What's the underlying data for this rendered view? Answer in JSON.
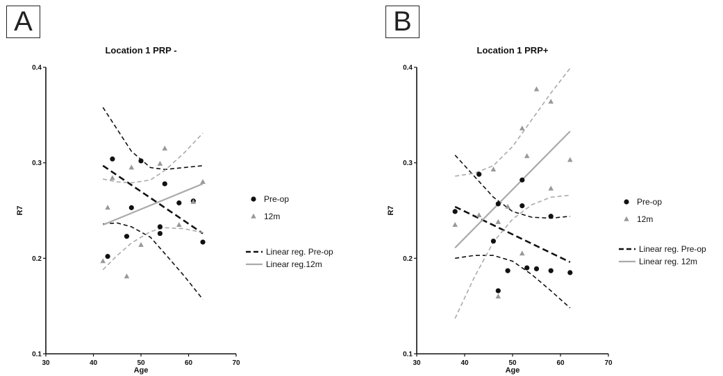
{
  "panels": [
    {
      "letter": "A"
    },
    {
      "letter": "B"
    }
  ],
  "chart_data": [
    {
      "type": "scatter",
      "title": "Location 1 PRP -",
      "xlabel": "Age",
      "ylabel": "R7",
      "xlim": [
        30,
        70
      ],
      "ylim": [
        0.1,
        0.4
      ],
      "xticks": [
        30,
        40,
        50,
        60,
        70
      ],
      "yticks": [
        0.1,
        0.2,
        0.3,
        0.4
      ],
      "legend_placement": "right",
      "series": [
        {
          "name": "Pre-op",
          "marker": "circle",
          "color": "#111111",
          "points": [
            [
              43,
              0.202
            ],
            [
              44,
              0.304
            ],
            [
              47,
              0.223
            ],
            [
              48,
              0.253
            ],
            [
              50,
              0.302
            ],
            [
              54,
              0.226
            ],
            [
              54,
              0.233
            ],
            [
              55,
              0.278
            ],
            [
              58,
              0.258
            ],
            [
              61,
              0.26
            ],
            [
              63,
              0.217
            ]
          ]
        },
        {
          "name": "12m",
          "marker": "triangle",
          "color": "#999999",
          "points": [
            [
              42,
              0.197
            ],
            [
              43,
              0.253
            ],
            [
              44,
              0.284
            ],
            [
              47,
              0.181
            ],
            [
              48,
              0.295
            ],
            [
              50,
              0.214
            ],
            [
              54,
              0.299
            ],
            [
              55,
              0.315
            ],
            [
              58,
              0.235
            ],
            [
              61,
              0.259
            ],
            [
              63,
              0.28
            ]
          ]
        }
      ],
      "regressions": [
        {
          "name": "Linear reg. Pre-op",
          "style": "dashed",
          "color": "#111111",
          "line": [
            [
              42,
              0.297
            ],
            [
              63,
              0.226
            ]
          ],
          "ci_upper": [
            [
              42,
              0.358
            ],
            [
              45,
              0.335
            ],
            [
              48,
              0.312
            ],
            [
              52,
              0.295
            ],
            [
              55,
              0.293
            ],
            [
              59,
              0.295
            ],
            [
              63,
              0.297
            ]
          ],
          "ci_lower": [
            [
              42,
              0.236
            ],
            [
              45,
              0.237
            ],
            [
              48,
              0.233
            ],
            [
              52,
              0.222
            ],
            [
              55,
              0.205
            ],
            [
              59,
              0.182
            ],
            [
              63,
              0.157
            ]
          ]
        },
        {
          "name": "Linear reg.12m",
          "style": "solid",
          "color": "#aaaaaa",
          "line": [
            [
              42,
              0.235
            ],
            [
              63,
              0.278
            ]
          ],
          "ci_upper": [
            [
              42,
              0.283
            ],
            [
              45,
              0.28
            ],
            [
              48,
              0.279
            ],
            [
              52,
              0.282
            ],
            [
              55,
              0.292
            ],
            [
              59,
              0.31
            ],
            [
              63,
              0.331
            ]
          ],
          "ci_lower": [
            [
              42,
              0.188
            ],
            [
              45,
              0.203
            ],
            [
              48,
              0.216
            ],
            [
              52,
              0.228
            ],
            [
              55,
              0.232
            ],
            [
              59,
              0.231
            ],
            [
              63,
              0.227
            ]
          ]
        }
      ]
    },
    {
      "type": "scatter",
      "title": "Location 1 PRP+",
      "xlabel": "Age",
      "ylabel": "R7",
      "xlim": [
        30,
        70
      ],
      "ylim": [
        0.1,
        0.4
      ],
      "xticks": [
        30,
        40,
        50,
        60,
        70
      ],
      "yticks": [
        0.1,
        0.2,
        0.3,
        0.4
      ],
      "legend_placement": "right",
      "series": [
        {
          "name": "Pre-op",
          "marker": "circle",
          "color": "#111111",
          "points": [
            [
              38,
              0.249
            ],
            [
              43,
              0.288
            ],
            [
              46,
              0.218
            ],
            [
              47,
              0.166
            ],
            [
              47,
              0.257
            ],
            [
              49,
              0.187
            ],
            [
              52,
              0.282
            ],
            [
              52,
              0.255
            ],
            [
              53,
              0.19
            ],
            [
              55,
              0.189
            ],
            [
              58,
              0.187
            ],
            [
              58,
              0.244
            ],
            [
              62,
              0.185
            ]
          ]
        },
        {
          "name": "12m",
          "marker": "triangle",
          "color": "#999999",
          "points": [
            [
              38,
              0.235
            ],
            [
              43,
              0.245
            ],
            [
              46,
              0.293
            ],
            [
              47,
              0.16
            ],
            [
              47,
              0.238
            ],
            [
              49,
              0.254
            ],
            [
              52,
              0.205
            ],
            [
              52,
              0.336
            ],
            [
              53,
              0.307
            ],
            [
              55,
              0.377
            ],
            [
              58,
              0.273
            ],
            [
              58,
              0.364
            ],
            [
              62,
              0.303
            ]
          ]
        }
      ],
      "regressions": [
        {
          "name": "Linear reg. Pre-op",
          "style": "dashed",
          "color": "#111111",
          "line": [
            [
              38,
              0.254
            ],
            [
              62,
              0.196
            ]
          ],
          "ci_upper": [
            [
              38,
              0.308
            ],
            [
              42,
              0.286
            ],
            [
              46,
              0.264
            ],
            [
              50,
              0.249
            ],
            [
              54,
              0.243
            ],
            [
              58,
              0.242
            ],
            [
              62,
              0.244
            ]
          ],
          "ci_lower": [
            [
              38,
              0.2
            ],
            [
              42,
              0.203
            ],
            [
              46,
              0.203
            ],
            [
              50,
              0.197
            ],
            [
              54,
              0.183
            ],
            [
              58,
              0.166
            ],
            [
              62,
              0.148
            ]
          ]
        },
        {
          "name": "Linear reg. 12m",
          "style": "solid",
          "color": "#aaaaaa",
          "line": [
            [
              38,
              0.211
            ],
            [
              62,
              0.333
            ]
          ],
          "ci_upper": [
            [
              38,
              0.286
            ],
            [
              42,
              0.289
            ],
            [
              46,
              0.297
            ],
            [
              50,
              0.317
            ],
            [
              54,
              0.345
            ],
            [
              58,
              0.373
            ],
            [
              62,
              0.399
            ]
          ],
          "ci_lower": [
            [
              38,
              0.137
            ],
            [
              42,
              0.18
            ],
            [
              46,
              0.217
            ],
            [
              50,
              0.241
            ],
            [
              54,
              0.256
            ],
            [
              58,
              0.264
            ],
            [
              62,
              0.266
            ]
          ]
        }
      ]
    }
  ]
}
